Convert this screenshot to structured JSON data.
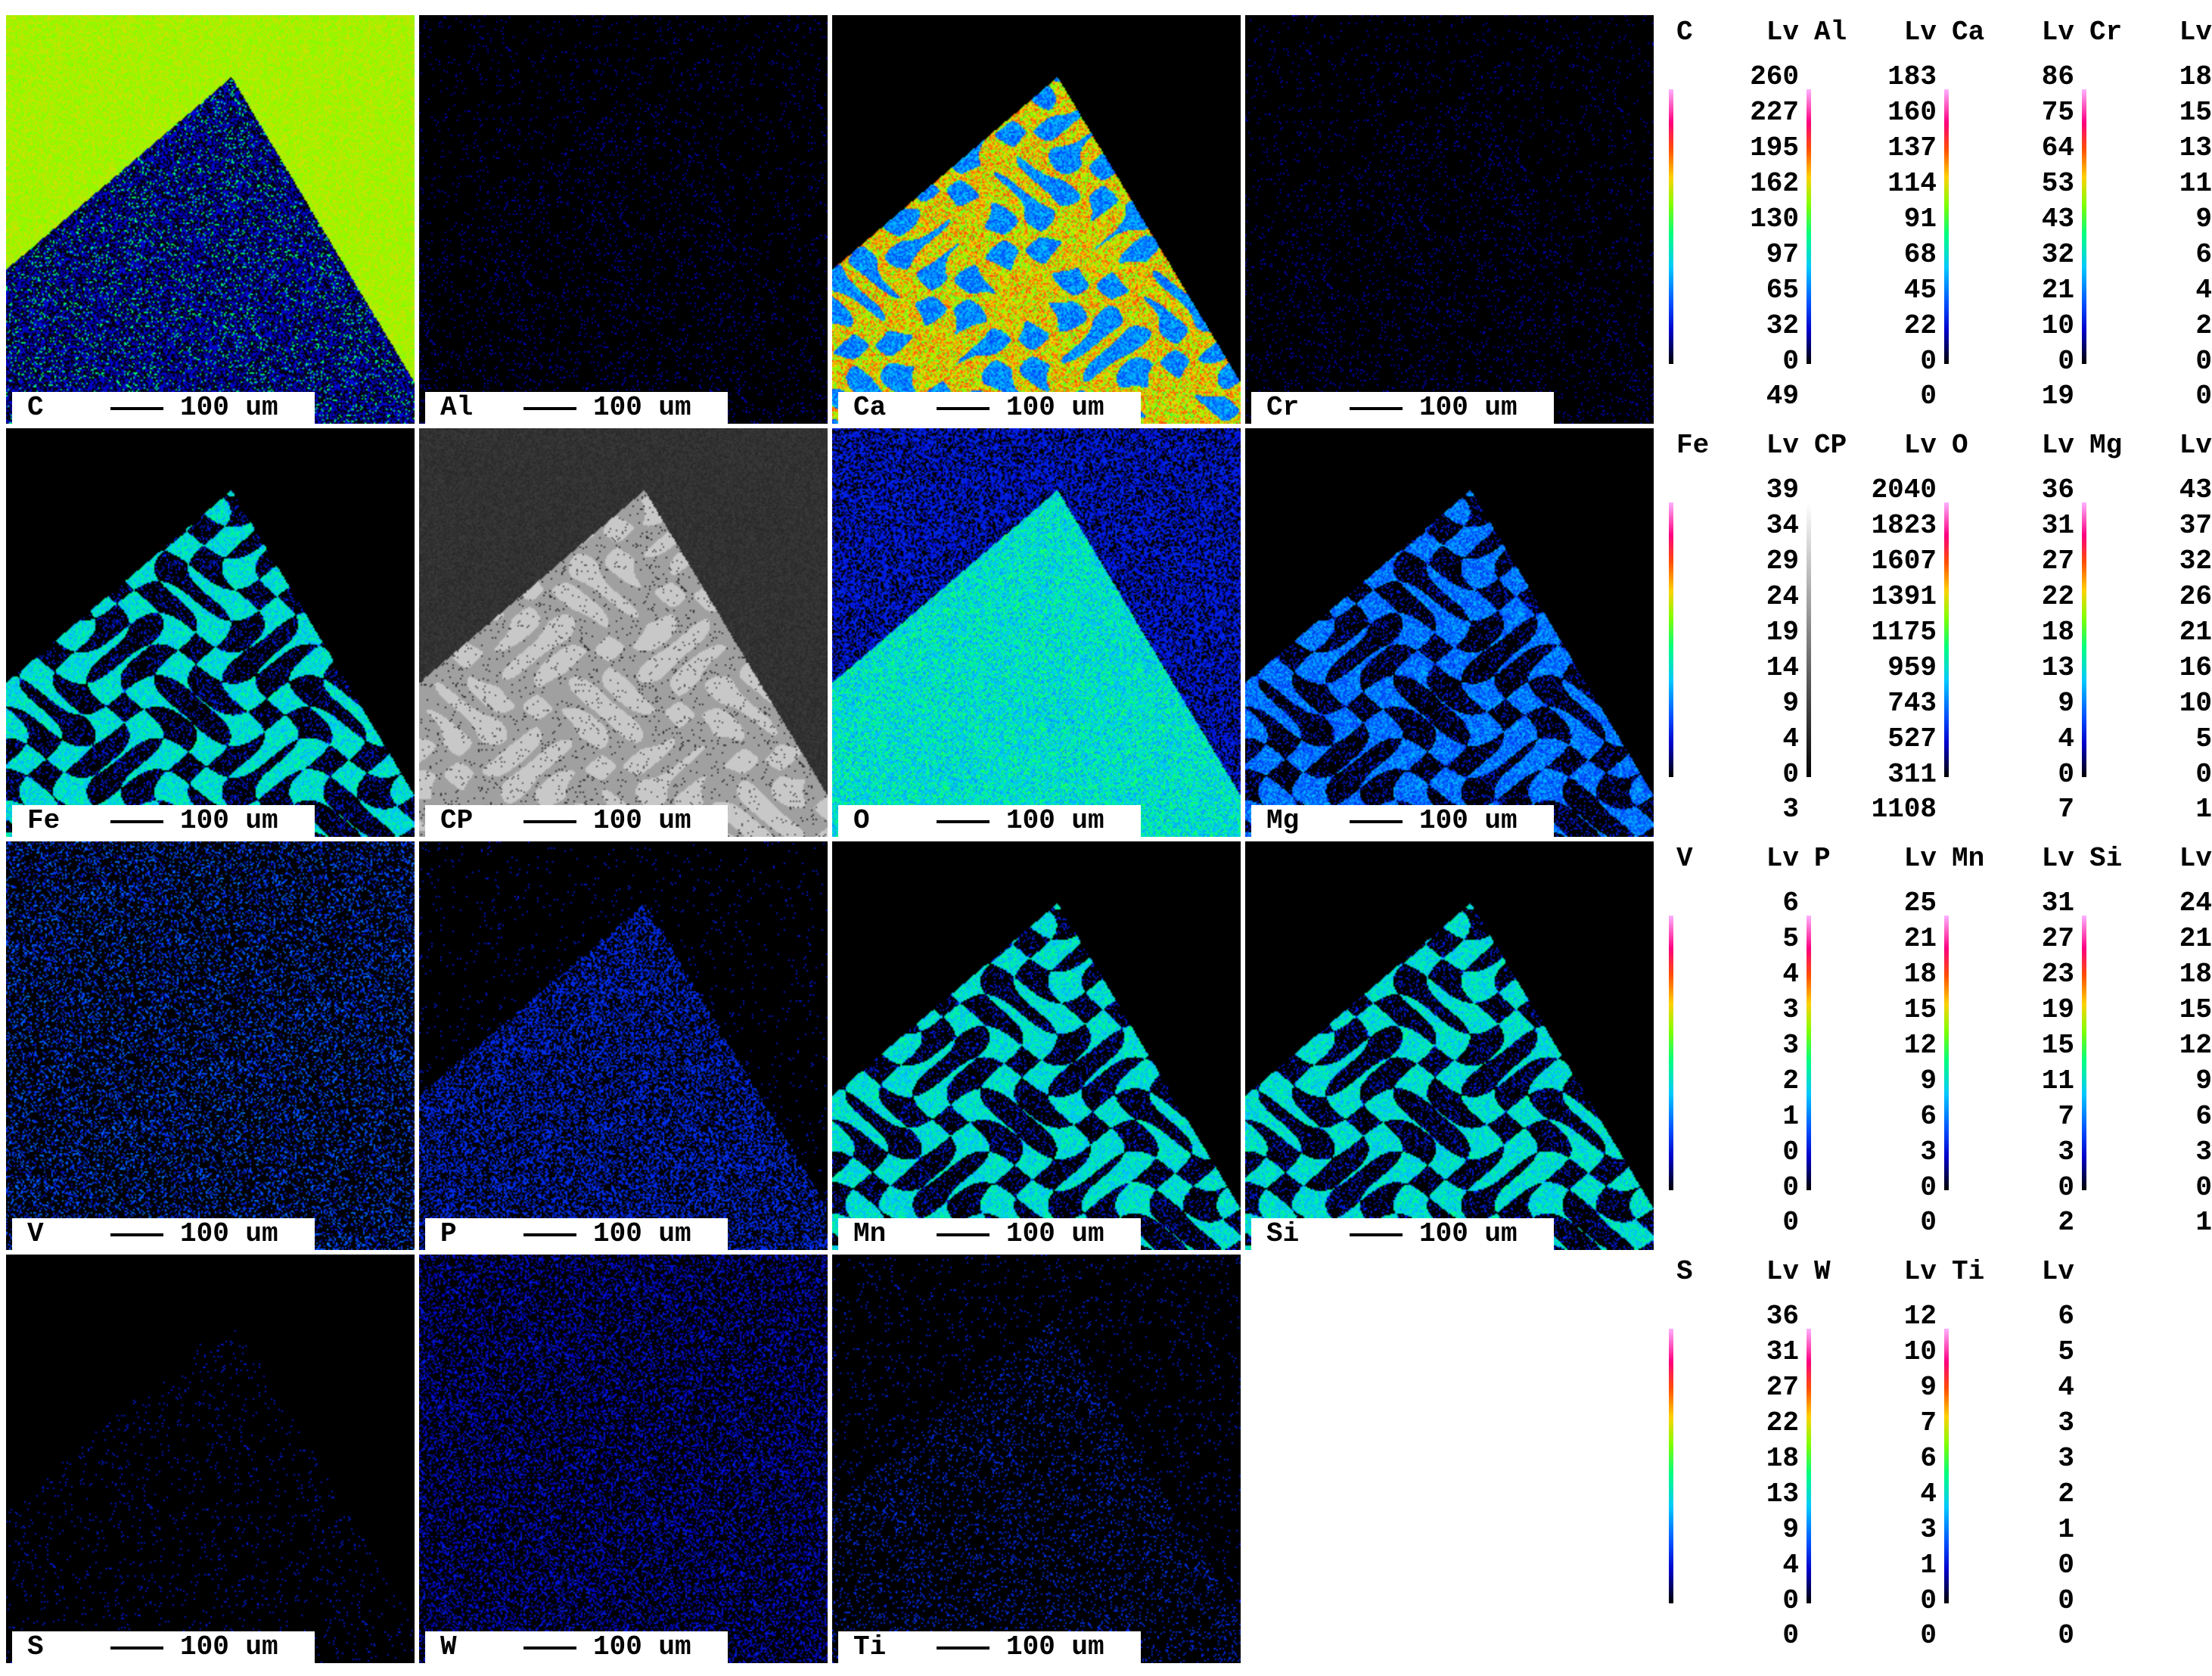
{
  "scale_label": "100 um",
  "rows": [
    [
      {
        "element": "C",
        "levels": [
          "260",
          "227",
          "195",
          "162",
          "130",
          "97",
          "65",
          "32",
          "0"
        ],
        "total": "49",
        "palette": "spectrum",
        "map": "c"
      },
      {
        "element": "Al",
        "levels": [
          "183",
          "160",
          "137",
          "114",
          "91",
          "68",
          "45",
          "22",
          "0"
        ],
        "total": "0",
        "palette": "spectrum",
        "map": "al"
      },
      {
        "element": "Ca",
        "levels": [
          "86",
          "75",
          "64",
          "53",
          "43",
          "32",
          "21",
          "10",
          "0"
        ],
        "total": "19",
        "palette": "spectrum",
        "map": "ca"
      },
      {
        "element": "Cr",
        "levels": [
          "18",
          "15",
          "13",
          "11",
          "9",
          "6",
          "4",
          "2",
          "0"
        ],
        "total": "0",
        "palette": "spectrum",
        "map": "cr"
      }
    ],
    [
      {
        "element": "Fe",
        "levels": [
          "39",
          "34",
          "29",
          "24",
          "19",
          "14",
          "9",
          "4",
          "0"
        ],
        "total": "3",
        "palette": "spectrum",
        "map": "fe"
      },
      {
        "element": "CP",
        "levels": [
          "2040",
          "1823",
          "1607",
          "1391",
          "1175",
          "959",
          "743",
          "527",
          "311"
        ],
        "total": "1108",
        "palette": "gray",
        "map": "cp"
      },
      {
        "element": "O",
        "levels": [
          "36",
          "31",
          "27",
          "22",
          "18",
          "13",
          "9",
          "4",
          "0"
        ],
        "total": "7",
        "palette": "spectrum",
        "map": "o"
      },
      {
        "element": "Mg",
        "levels": [
          "43",
          "37",
          "32",
          "26",
          "21",
          "16",
          "10",
          "5",
          "0"
        ],
        "total": "1",
        "palette": "spectrum",
        "map": "mg"
      }
    ],
    [
      {
        "element": "V",
        "levels": [
          "6",
          "5",
          "4",
          "3",
          "3",
          "2",
          "1",
          "0",
          "0"
        ],
        "total": "0",
        "palette": "spectrum",
        "map": "v"
      },
      {
        "element": "P",
        "levels": [
          "25",
          "21",
          "18",
          "15",
          "12",
          "9",
          "6",
          "3",
          "0"
        ],
        "total": "0",
        "palette": "spectrum",
        "map": "p"
      },
      {
        "element": "Mn",
        "levels": [
          "31",
          "27",
          "23",
          "19",
          "15",
          "11",
          "7",
          "3",
          "0"
        ],
        "total": "2",
        "palette": "spectrum",
        "map": "mn"
      },
      {
        "element": "Si",
        "levels": [
          "24",
          "21",
          "18",
          "15",
          "12",
          "9",
          "6",
          "3",
          "0"
        ],
        "total": "1",
        "palette": "spectrum",
        "map": "si"
      }
    ],
    [
      {
        "element": "S",
        "levels": [
          "36",
          "31",
          "27",
          "22",
          "18",
          "13",
          "9",
          "4",
          "0"
        ],
        "total": "0",
        "palette": "spectrum",
        "map": "s"
      },
      {
        "element": "W",
        "levels": [
          "12",
          "10",
          "9",
          "7",
          "6",
          "4",
          "3",
          "1",
          "0"
        ],
        "total": "0",
        "palette": "spectrum",
        "map": "w"
      },
      {
        "element": "Ti",
        "levels": [
          "6",
          "5",
          "4",
          "3",
          "3",
          "2",
          "1",
          "0",
          "0"
        ],
        "total": "0",
        "palette": "spectrum",
        "map": "ti"
      }
    ]
  ],
  "legend_header_lv": "Lv",
  "colors": {
    "background": "#000000",
    "label_bg": "#ffffff",
    "page_bg": "#ffffff"
  }
}
